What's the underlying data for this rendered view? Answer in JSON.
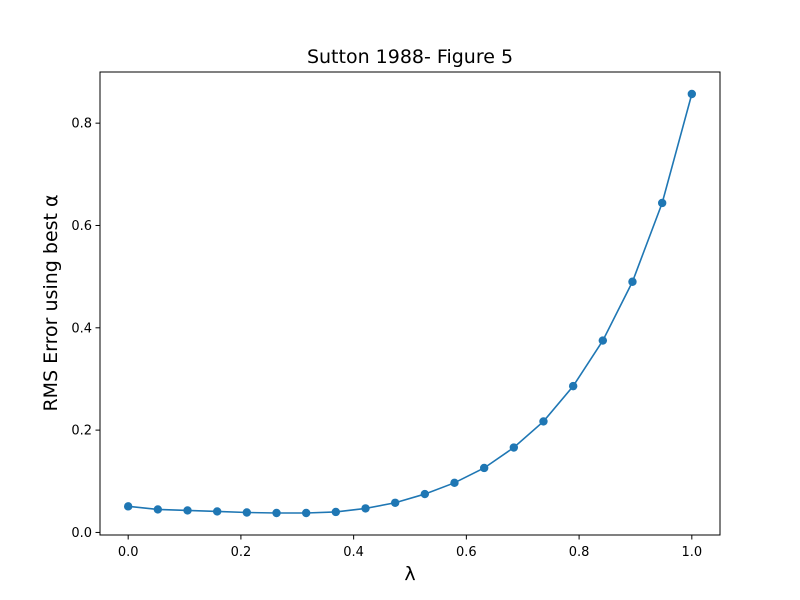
{
  "chart_data": {
    "type": "line",
    "title": "Sutton 1988- Figure 5",
    "xlabel": "λ",
    "ylabel": "RMS Error using best α",
    "xlim": [
      -0.05,
      1.05
    ],
    "ylim": [
      -0.005,
      0.9
    ],
    "xticks": [
      0.0,
      0.2,
      0.4,
      0.6,
      0.8,
      1.0
    ],
    "xtick_labels": [
      "0.0",
      "0.2",
      "0.4",
      "0.6",
      "0.8",
      "1.0"
    ],
    "yticks": [
      0.0,
      0.2,
      0.4,
      0.6,
      0.8
    ],
    "ytick_labels": [
      "0.0",
      "0.2",
      "0.4",
      "0.6",
      "0.8"
    ],
    "grid": false,
    "legend": false,
    "series": [
      {
        "color": "#1f77b4",
        "marker": "circle",
        "x": [
          0.0,
          0.0526,
          0.1053,
          0.1579,
          0.2105,
          0.2632,
          0.3158,
          0.3684,
          0.4211,
          0.4737,
          0.5263,
          0.5789,
          0.6316,
          0.6842,
          0.7368,
          0.7895,
          0.8421,
          0.8947,
          0.9474,
          1.0
        ],
        "y": [
          0.051,
          0.045,
          0.043,
          0.041,
          0.039,
          0.038,
          0.038,
          0.04,
          0.047,
          0.058,
          0.075,
          0.097,
          0.126,
          0.166,
          0.217,
          0.286,
          0.375,
          0.49,
          0.644,
          0.857
        ]
      }
    ]
  }
}
